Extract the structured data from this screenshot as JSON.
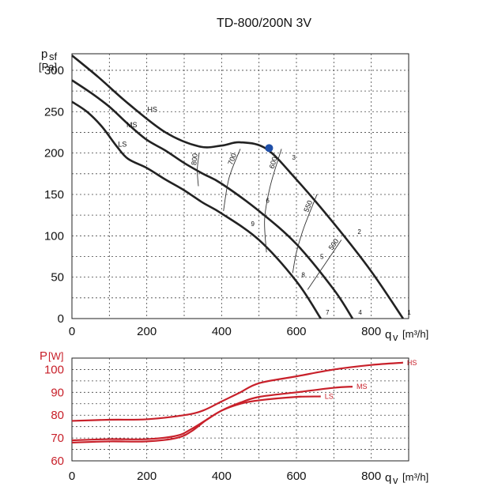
{
  "chart_data": [
    {
      "type": "line",
      "title": "TD-800/200N 3V",
      "ylabel": "p",
      "ylabel_sub": "sf",
      "yunit": "[Pa]",
      "xlabel": "q",
      "xlabel_sub": "v",
      "xunit": "[m³/h]",
      "xlim": [
        0,
        900
      ],
      "ylim": [
        0,
        320
      ],
      "xticks": [
        0,
        200,
        400,
        600,
        800
      ],
      "yticks": [
        0,
        50,
        100,
        150,
        200,
        250,
        300
      ],
      "grid": true,
      "series": [
        {
          "name": "HS",
          "color": "#222222",
          "x": [
            0,
            70,
            150,
            250,
            340,
            400,
            450,
            520,
            600,
            700,
            800,
            885
          ],
          "y": [
            318,
            292,
            260,
            225,
            208,
            209,
            213,
            205,
            168,
            115,
            57,
            0
          ]
        },
        {
          "name": "MS",
          "color": "#222222",
          "x": [
            0,
            50,
            100,
            150,
            200,
            250,
            300,
            350,
            400,
            500,
            600,
            700,
            750
          ],
          "y": [
            288,
            273,
            256,
            235,
            216,
            203,
            188,
            175,
            163,
            130,
            90,
            35,
            0
          ]
        },
        {
          "name": "LS",
          "color": "#222222",
          "x": [
            0,
            40,
            80,
            120,
            150,
            200,
            250,
            300,
            350,
            400,
            500,
            600,
            665
          ],
          "y": [
            262,
            250,
            232,
            208,
            193,
            182,
            168,
            155,
            140,
            127,
            95,
            45,
            0
          ]
        }
      ],
      "series_labels": [
        "HS",
        "MS",
        "LS"
      ],
      "rpm_lines": [
        {
          "label": "800",
          "x": [
            340,
            335,
            338
          ],
          "y": [
            200,
            180,
            160
          ]
        },
        {
          "label": "700",
          "x": [
            450,
            420,
            405
          ],
          "y": [
            205,
            170,
            130
          ]
        },
        {
          "label": "600",
          "x": [
            560,
            530,
            515,
            520
          ],
          "y": [
            205,
            160,
            120,
            80
          ]
        },
        {
          "label": "550",
          "x": [
            655,
            620,
            600,
            590
          ],
          "y": [
            150,
            110,
            80,
            55
          ]
        },
        {
          "label": "500",
          "x": [
            720,
            690,
            660,
            630
          ],
          "y": [
            95,
            75,
            55,
            35
          ]
        }
      ],
      "operating_points": [
        {
          "label": "1",
          "x": 888,
          "y": 5
        },
        {
          "label": "2",
          "x": 755,
          "y": 102
        },
        {
          "label": "3",
          "x": 580,
          "y": 192
        },
        {
          "label": "4",
          "x": 757,
          "y": 5
        },
        {
          "label": "5",
          "x": 655,
          "y": 72
        },
        {
          "label": "6",
          "x": 510,
          "y": 140
        },
        {
          "label": "7",
          "x": 670,
          "y": 5
        },
        {
          "label": "8",
          "x": 605,
          "y": 50
        },
        {
          "label": "9",
          "x": 470,
          "y": 112
        }
      ],
      "highlight_point": {
        "x": 527,
        "y": 206,
        "color": "#1f4fa8"
      }
    },
    {
      "type": "line",
      "ylabel": "P",
      "yunit": "[W]",
      "xlabel": "q",
      "xlabel_sub": "v",
      "xunit": "[m³/h]",
      "xlim": [
        0,
        900
      ],
      "ylim": [
        60,
        105
      ],
      "xticks": [
        0,
        200,
        400,
        600,
        800
      ],
      "yticks": [
        60,
        70,
        80,
        90,
        100
      ],
      "grid": true,
      "series": [
        {
          "name": "HS",
          "color": "#c8202a",
          "x": [
            0,
            100,
            200,
            300,
            350,
            400,
            450,
            500,
            600,
            700,
            800,
            885
          ],
          "y": [
            77.5,
            78,
            78.2,
            80,
            82,
            86,
            90,
            94,
            97,
            100,
            102,
            103
          ]
        },
        {
          "name": "MS",
          "color": "#c8202a",
          "x": [
            0,
            100,
            200,
            280,
            320,
            360,
            400,
            450,
            500,
            600,
            700,
            750
          ],
          "y": [
            69,
            69.5,
            69.5,
            71,
            74,
            78,
            82,
            85.5,
            88,
            90,
            92,
            92.5
          ]
        },
        {
          "name": "LS",
          "color": "#c8202a",
          "x": [
            0,
            100,
            200,
            280,
            320,
            360,
            400,
            450,
            500,
            600,
            665
          ],
          "y": [
            68,
            68.5,
            68.5,
            70,
            73,
            78,
            82,
            85,
            86.5,
            88,
            88.2
          ]
        }
      ],
      "series_labels": [
        "HS",
        "MS",
        "LS"
      ]
    }
  ]
}
